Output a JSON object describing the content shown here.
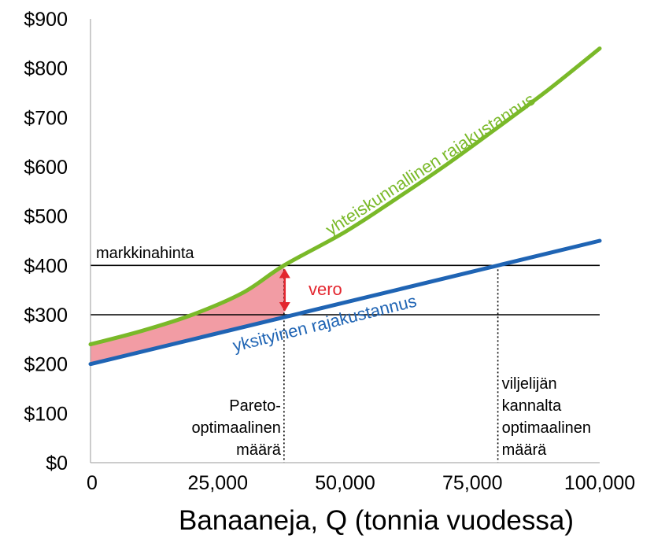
{
  "chart_data": {
    "type": "line",
    "x_axis": {
      "min": 0,
      "max": 100000,
      "ticks": [
        0,
        25000,
        50000,
        75000,
        100000
      ],
      "tick_labels": [
        "0",
        "25,000",
        "50,000",
        "75,000",
        "100,000"
      ]
    },
    "y_axis": {
      "min": 0,
      "max": 900,
      "ticks": [
        0,
        100,
        200,
        300,
        400,
        500,
        600,
        700,
        800,
        900
      ],
      "tick_labels": [
        "$0",
        "$100",
        "$200",
        "$300",
        "$400",
        "$500",
        "$600",
        "$700",
        "$800",
        "$900"
      ]
    },
    "xlabel": "Banaaneja, Q (tonnia vuodessa)",
    "series": [
      {
        "name": "yhteiskunnallinen rajakustannus",
        "color": "#7ab929",
        "x": [
          0,
          10000,
          20000,
          30000,
          38000,
          50000,
          60000,
          70000,
          80000,
          90000,
          100000
        ],
        "y": [
          240,
          267,
          300,
          345,
          400,
          468,
          535,
          605,
          680,
          757,
          840
        ]
      },
      {
        "name": "yksityinen rajakustannus",
        "color": "#1f64b4",
        "x": [
          0,
          100000
        ],
        "y": [
          200,
          450
        ]
      }
    ],
    "horizontal_lines": [
      {
        "y": 400,
        "label": "markkinahinta"
      },
      {
        "y": 300,
        "label": ""
      }
    ],
    "vertical_markers": [
      {
        "x": 38000,
        "y_top": 400,
        "label_lines": [
          "Pareto-",
          "optimaalinen",
          "määrä"
        ]
      },
      {
        "x": 80000,
        "y_top": 400,
        "label_lines": [
          "viljelijän",
          "kannalta",
          "optimaalinen",
          "määrä"
        ]
      }
    ],
    "shaded_region": {
      "x_from": 0,
      "x_to": 38000,
      "color": "#f29ca4"
    },
    "tax_arrow": {
      "x": 40000,
      "y_from": 300,
      "y_to": 400,
      "label": "vero",
      "color": "#e3262f"
    }
  }
}
